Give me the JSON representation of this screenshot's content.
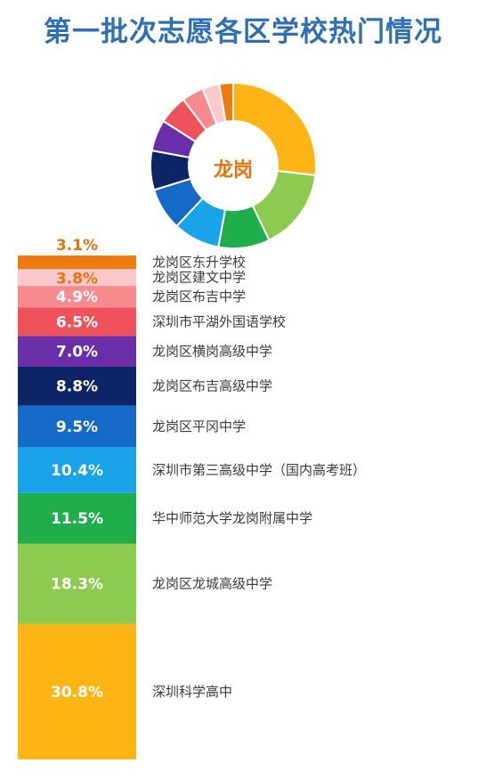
{
  "title": "第一批次志愿各区学校热门情况",
  "chart_data": {
    "type": "pie",
    "subtype": "donut + stacked-bar",
    "center_label": "龙岗",
    "unit": "%",
    "segments": [
      {
        "school": "深圳科学高中",
        "value": 30.8,
        "label": "30.8%",
        "color": "#FDB515"
      },
      {
        "school": "龙岗区龙城高级中学",
        "value": 18.3,
        "label": "18.3%",
        "color": "#8CCB4F"
      },
      {
        "school": "华中师范大学龙岗附属中学",
        "value": 11.5,
        "label": "11.5%",
        "color": "#1FAE4B"
      },
      {
        "school": "深圳市第三高级中学（国内高考班）",
        "value": 10.4,
        "label": "10.4%",
        "color": "#1AA3E8"
      },
      {
        "school": "龙岗区平冈中学",
        "value": 9.5,
        "label": "9.5%",
        "color": "#1569C7"
      },
      {
        "school": "龙岗区布吉高级中学",
        "value": 8.8,
        "label": "8.8%",
        "color": "#0D2466"
      },
      {
        "school": "龙岗区横岗高级中学",
        "value": 7.0,
        "label": "7.0%",
        "color": "#6A2FA8"
      },
      {
        "school": "深圳市平湖外国语学校",
        "value": 6.5,
        "label": "6.5%",
        "color": "#F0525B"
      },
      {
        "school": "龙岗区布吉中学",
        "value": 4.9,
        "label": "4.9%",
        "color": "#F78A8E"
      },
      {
        "school": "龙岗区建文中学",
        "value": 3.8,
        "label": "3.8%",
        "color": "#FBC9CC"
      },
      {
        "school": "龙岗区东升学校",
        "value": 3.1,
        "label": "3.1%",
        "color": "#F07A12"
      }
    ]
  }
}
